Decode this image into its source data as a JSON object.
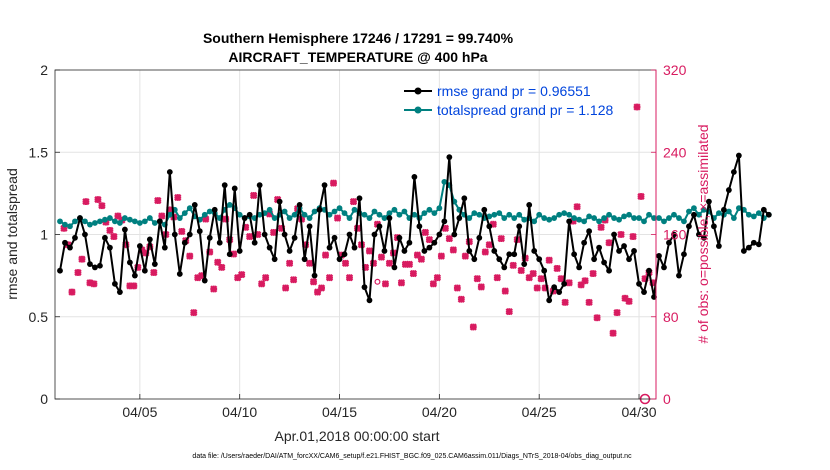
{
  "chart_data": {
    "type": "line",
    "title_line1": "Southern Hemisphere 17246 / 17291 = 99.740%",
    "title_line2": "AIRCRAFT_TEMPERATURE @ 400 hPa",
    "xlabel": "Apr.01,2018 00:00:00 start",
    "ylabel_left": "rmse and totalspread",
    "ylabel_right": "# of obs: o=possible; ×=assimilated",
    "xlim": [
      0.75,
      30.85
    ],
    "ylim_left": [
      0,
      2
    ],
    "ylim_right": [
      0,
      320
    ],
    "xticks": [
      {
        "x": 5,
        "label": "04/05"
      },
      {
        "x": 10,
        "label": "04/10"
      },
      {
        "x": 15,
        "label": "04/15"
      },
      {
        "x": 20,
        "label": "04/20"
      },
      {
        "x": 25,
        "label": "04/25"
      },
      {
        "x": 30,
        "label": "04/30"
      }
    ],
    "yticks_left": [
      "0",
      "0.5",
      "1",
      "1.5",
      "2"
    ],
    "yticks_right": [
      "0",
      "80",
      "160",
      "240",
      "320"
    ],
    "legend": [
      {
        "name": "rmse grand pr = 0.96551",
        "color": "#000000"
      },
      {
        "name": "totalspread grand pr = 1.128",
        "color": "#008080"
      }
    ],
    "colors": {
      "rmse": "#000000",
      "spread": "#008080",
      "obs": "#d81b60",
      "legend_text": "#0044dd"
    },
    "t_start": 1.0,
    "t_step": 0.25,
    "rmse": [
      0.78,
      0.95,
      0.92,
      0.98,
      1.1,
      1.0,
      0.82,
      0.8,
      0.81,
      0.98,
      0.92,
      0.7,
      0.65,
      1.03,
      0.83,
      0.75,
      0.93,
      0.78,
      0.97,
      0.82,
      1.08,
      0.92,
      1.38,
      1.0,
      0.76,
      0.95,
      1.0,
      1.18,
      1.02,
      0.72,
      0.98,
      1.15,
      0.95,
      1.3,
      0.88,
      1.28,
      0.9,
      1.1,
      1.12,
      0.95,
      1.3,
      1.0,
      0.92,
      0.85,
      1.2,
      1.0,
      0.9,
      0.98,
      1.18,
      0.85,
      1.05,
      0.75,
      1.15,
      1.3,
      0.92,
      0.98,
      0.85,
      0.88,
      1.0,
      0.92,
      1.22,
      0.68,
      0.6,
      1.0,
      1.05,
      0.9,
      1.1,
      0.8,
      0.98,
      0.9,
      0.95,
      1.35,
      1.05,
      0.9,
      0.92,
      0.95,
      1.0,
      1.08,
      1.47,
      1.0,
      1.1,
      1.22,
      0.9,
      0.85,
      0.98,
      1.15,
      1.05,
      0.9,
      0.85,
      0.8,
      0.88,
      0.88,
      1.05,
      0.82,
      1.18,
      0.9,
      0.85,
      0.78,
      0.6,
      0.68,
      0.65,
      0.7,
      1.08,
      0.88,
      0.8,
      0.95,
      1.02,
      0.85,
      0.92,
      0.83,
      0.78,
      1.0,
      0.9,
      0.93,
      0.85,
      0.9,
      0.7,
      0.65,
      0.78,
      0.62,
      0.87,
      0.8,
      0.95,
      1.0,
      0.75,
      0.88,
      1.05,
      1.12,
      1.0,
      0.98,
      1.2,
      1.05,
      0.93,
      1.15,
      1.27,
      1.38,
      1.48,
      0.9,
      0.92,
      0.95,
      0.94,
      1.15,
      1.12
    ],
    "spread": [
      1.08,
      1.06,
      1.05,
      1.08,
      1.1,
      1.08,
      1.06,
      1.07,
      1.08,
      1.09,
      1.1,
      1.08,
      1.07,
      1.1,
      1.09,
      1.08,
      1.07,
      1.08,
      1.1,
      1.07,
      1.08,
      1.06,
      1.12,
      1.15,
      1.1,
      1.13,
      1.16,
      1.11,
      1.09,
      1.12,
      1.14,
      1.13,
      1.1,
      1.15,
      1.18,
      1.16,
      1.12,
      1.1,
      1.11,
      1.1,
      1.12,
      1.13,
      1.15,
      1.1,
      1.12,
      1.14,
      1.1,
      1.12,
      1.16,
      1.12,
      1.1,
      1.14,
      1.16,
      1.15,
      1.12,
      1.14,
      1.16,
      1.13,
      1.1,
      1.15,
      1.13,
      1.12,
      1.1,
      1.14,
      1.12,
      1.1,
      1.13,
      1.15,
      1.12,
      1.14,
      1.1,
      1.12,
      1.1,
      1.13,
      1.15,
      1.13,
      1.16,
      1.32,
      1.3,
      1.2,
      1.15,
      1.12,
      1.1,
      1.13,
      1.12,
      1.1,
      1.11,
      1.12,
      1.13,
      1.1,
      1.12,
      1.1,
      1.12,
      1.09,
      1.1,
      1.08,
      1.12,
      1.1,
      1.09,
      1.1,
      1.12,
      1.13,
      1.12,
      1.1,
      1.09,
      1.08,
      1.11,
      1.1,
      1.08,
      1.1,
      1.12,
      1.1,
      1.09,
      1.11,
      1.12,
      1.1,
      1.1,
      1.08,
      1.12,
      1.1,
      1.1,
      1.08,
      1.1,
      1.12,
      1.1,
      1.08,
      1.14,
      1.16,
      1.12,
      1.15,
      1.14,
      1.1,
      1.13,
      1.12,
      1.14,
      1.1,
      1.16,
      1.15,
      1.12,
      1.11,
      1.13,
      1.1,
      1.12
    ],
    "obs_assimilated": [
      [
        1.2,
        166
      ],
      [
        1.4,
        150
      ],
      [
        1.6,
        104
      ],
      [
        1.9,
        123
      ],
      [
        2.1,
        136
      ],
      [
        2.3,
        192
      ],
      [
        2.5,
        113
      ],
      [
        2.7,
        112
      ],
      [
        2.9,
        194
      ],
      [
        3.1,
        188
      ],
      [
        3.3,
        172
      ],
      [
        3.5,
        164
      ],
      [
        3.7,
        158
      ],
      [
        3.9,
        178
      ],
      [
        4.1,
        174
      ],
      [
        4.3,
        150
      ],
      [
        4.5,
        110
      ],
      [
        4.7,
        110
      ],
      [
        4.9,
        128
      ],
      [
        5.1,
        145
      ],
      [
        5.3,
        142
      ],
      [
        5.5,
        148
      ],
      [
        5.7,
        123
      ],
      [
        5.9,
        193
      ],
      [
        6.1,
        178
      ],
      [
        6.3,
        160
      ],
      [
        6.5,
        184
      ],
      [
        6.7,
        177
      ],
      [
        6.9,
        196
      ],
      [
        7.1,
        163
      ],
      [
        7.3,
        154
      ],
      [
        7.5,
        139
      ],
      [
        7.7,
        84
      ],
      [
        7.9,
        118
      ],
      [
        8.1,
        120
      ],
      [
        8.3,
        175
      ],
      [
        8.5,
        143
      ],
      [
        8.7,
        107
      ],
      [
        8.9,
        133
      ],
      [
        9.1,
        128
      ],
      [
        9.3,
        175
      ],
      [
        9.5,
        155
      ],
      [
        9.7,
        141
      ],
      [
        9.9,
        118
      ],
      [
        10.1,
        121
      ],
      [
        10.3,
        167
      ],
      [
        10.5,
        158
      ],
      [
        10.7,
        198
      ],
      [
        10.9,
        160
      ],
      [
        11.1,
        112
      ],
      [
        11.3,
        118
      ],
      [
        11.5,
        180
      ],
      [
        11.7,
        162
      ],
      [
        11.9,
        194
      ],
      [
        12.1,
        166
      ],
      [
        12.3,
        108
      ],
      [
        12.5,
        132
      ],
      [
        12.7,
        116
      ],
      [
        12.9,
        185
      ],
      [
        13.1,
        175
      ],
      [
        13.3,
        150
      ],
      [
        13.5,
        132
      ],
      [
        13.7,
        114
      ],
      [
        13.9,
        104
      ],
      [
        14.1,
        108
      ],
      [
        14.3,
        140
      ],
      [
        14.5,
        118
      ],
      [
        14.7,
        210
      ],
      [
        14.9,
        176
      ],
      [
        15.1,
        140
      ],
      [
        15.3,
        132
      ],
      [
        15.5,
        118
      ],
      [
        15.7,
        192
      ],
      [
        15.9,
        166
      ],
      [
        16.1,
        150
      ],
      [
        16.3,
        128
      ],
      [
        16.5,
        144
      ],
      [
        16.7,
        132
      ],
      [
        16.9,
        170
      ],
      [
        17.1,
        138
      ],
      [
        17.3,
        112
      ],
      [
        17.5,
        132
      ],
      [
        17.7,
        142
      ],
      [
        17.9,
        157
      ],
      [
        18.1,
        113
      ],
      [
        18.3,
        131
      ],
      [
        18.5,
        131
      ],
      [
        18.7,
        122
      ],
      [
        18.9,
        140
      ],
      [
        19.1,
        136
      ],
      [
        19.3,
        162
      ],
      [
        19.5,
        155
      ],
      [
        19.7,
        112
      ],
      [
        19.9,
        118
      ],
      [
        20.1,
        139
      ],
      [
        20.3,
        166
      ],
      [
        20.5,
        156
      ],
      [
        20.7,
        145
      ],
      [
        20.9,
        108
      ],
      [
        21.1,
        97
      ],
      [
        21.3,
        139
      ],
      [
        21.5,
        153
      ],
      [
        21.7,
        70
      ],
      [
        21.9,
        117
      ],
      [
        22.1,
        109
      ],
      [
        22.3,
        143
      ],
      [
        22.5,
        150
      ],
      [
        22.7,
        170
      ],
      [
        22.9,
        118
      ],
      [
        23.1,
        156
      ],
      [
        23.3,
        105
      ],
      [
        23.5,
        85
      ],
      [
        23.7,
        130
      ],
      [
        23.9,
        155
      ],
      [
        24.1,
        125
      ],
      [
        24.3,
        137
      ],
      [
        24.5,
        118
      ],
      [
        24.7,
        122
      ],
      [
        24.9,
        108
      ],
      [
        25.1,
        117
      ],
      [
        25.3,
        108
      ],
      [
        25.5,
        135
      ],
      [
        25.7,
        105
      ],
      [
        25.9,
        127
      ],
      [
        26.1,
        117
      ],
      [
        26.3,
        94
      ],
      [
        26.5,
        113
      ],
      [
        26.7,
        173
      ],
      [
        26.9,
        187
      ],
      [
        27.1,
        111
      ],
      [
        27.3,
        115
      ],
      [
        27.5,
        94
      ],
      [
        27.7,
        122
      ],
      [
        27.9,
        79
      ],
      [
        28.1,
        167
      ],
      [
        28.3,
        174
      ],
      [
        28.5,
        152
      ],
      [
        28.7,
        64
      ],
      [
        28.9,
        84
      ],
      [
        29.1,
        160
      ],
      [
        29.3,
        98
      ],
      [
        29.5,
        95
      ],
      [
        29.7,
        158
      ],
      [
        29.9,
        284
      ],
      [
        30.1,
        197
      ],
      [
        30.3,
        117
      ],
      [
        30.5,
        123
      ],
      [
        30.7,
        113
      ]
    ],
    "obs_possible": [
      [
        16.9,
        114
      ]
    ],
    "obs_zero_marker": {
      "x": 30.3,
      "y": 0
    }
  },
  "footer": {
    "data_file": "data file: /Users/raeder/DAI/ATM_forcXX/CAM6_setup/f.e21.FHIST_BGC.f09_025.CAM6assim.011/Diags_NTrS_2018-04/obs_diag_output.nc"
  }
}
